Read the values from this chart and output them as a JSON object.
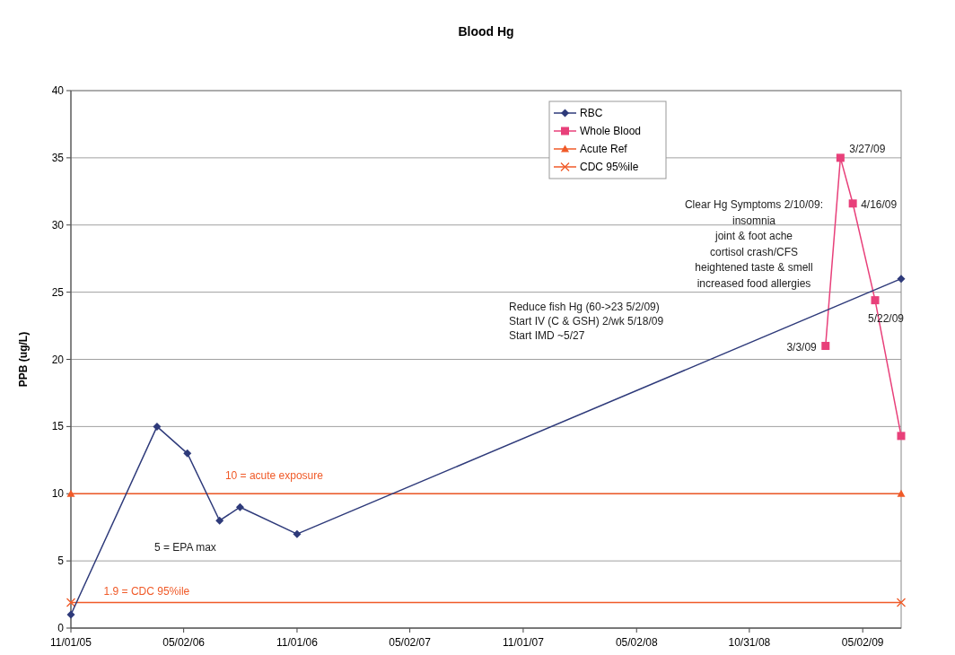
{
  "chart_data": {
    "type": "line",
    "title": "Blood Hg",
    "ylabel": "PPB (ug/L)",
    "xlim": [
      "2005-11-01",
      "2009-07-03"
    ],
    "xticks": [
      {
        "value": "2005-11-01",
        "label": "11/01/05"
      },
      {
        "value": "2006-05-02",
        "label": "05/02/06"
      },
      {
        "value": "2006-11-01",
        "label": "11/01/06"
      },
      {
        "value": "2007-05-02",
        "label": "05/02/07"
      },
      {
        "value": "2007-11-01",
        "label": "11/01/07"
      },
      {
        "value": "2008-05-02",
        "label": "05/02/08"
      },
      {
        "value": "2008-10-31",
        "label": "10/31/08"
      },
      {
        "value": "2009-05-02",
        "label": "05/02/09"
      }
    ],
    "ylim": [
      0,
      40
    ],
    "yticks": [
      0,
      5,
      10,
      15,
      20,
      25,
      30,
      35,
      40
    ],
    "grid": "y",
    "legend": "top",
    "series": [
      {
        "name": "RBC",
        "color": "#2e3a7a",
        "marker": "diamond",
        "x": [
          "2005-11-01",
          "2006-03-20",
          "2006-05-08",
          "2006-06-29",
          "2006-08-01",
          "2006-11-01",
          "2009-07-03"
        ],
        "values": [
          1,
          15,
          13,
          8,
          9,
          7,
          26
        ]
      },
      {
        "name": "Whole Blood",
        "color": "#e8407a",
        "marker": "square",
        "x": [
          "2009-03-03",
          "2009-03-27",
          "2009-04-16",
          "2009-05-22",
          "2009-07-03"
        ],
        "values": [
          21,
          35,
          31.6,
          24.4,
          14.3
        ]
      },
      {
        "name": "Acute Ref",
        "color": "#f05a28",
        "marker": "triangle",
        "x": [
          "2005-11-01",
          "2009-07-03"
        ],
        "values": [
          10,
          10
        ]
      },
      {
        "name": "CDC 95%ile",
        "color": "#f05a28",
        "marker": "cross",
        "x": [
          "2005-11-01",
          "2009-07-03"
        ],
        "values": [
          1.9,
          1.9
        ]
      }
    ],
    "annotations": [
      {
        "text": "10 = acute exposure",
        "x": "2006-07-08",
        "y": 10
      },
      {
        "text": "1.9 = CDC 95%ile",
        "x": "2005-12-24",
        "y": 1.9
      },
      "5 = EPA max",
      {
        "text": "3/3/09",
        "x": "2009-03-03",
        "y": 21
      },
      {
        "text": "3/27/09",
        "x": "2009-03-27",
        "y": 35
      },
      {
        "text": "4/16/09",
        "x": "2009-04-16",
        "y": 31.6
      },
      {
        "text": "5/22/09",
        "x": "2009-05-22",
        "y": 24.4
      },
      "Clear Hg Symptoms  2/10/09:\ninsomnia\njoint & foot ache\ncortisol crash/CFS\nheightened taste & smell\nincreased food allergies",
      "Reduce fish Hg (60->23 5/2/09)\nStart IV (C & GSH) 2/wk  5/18/09\nStart IMD ~5/27"
    ]
  }
}
